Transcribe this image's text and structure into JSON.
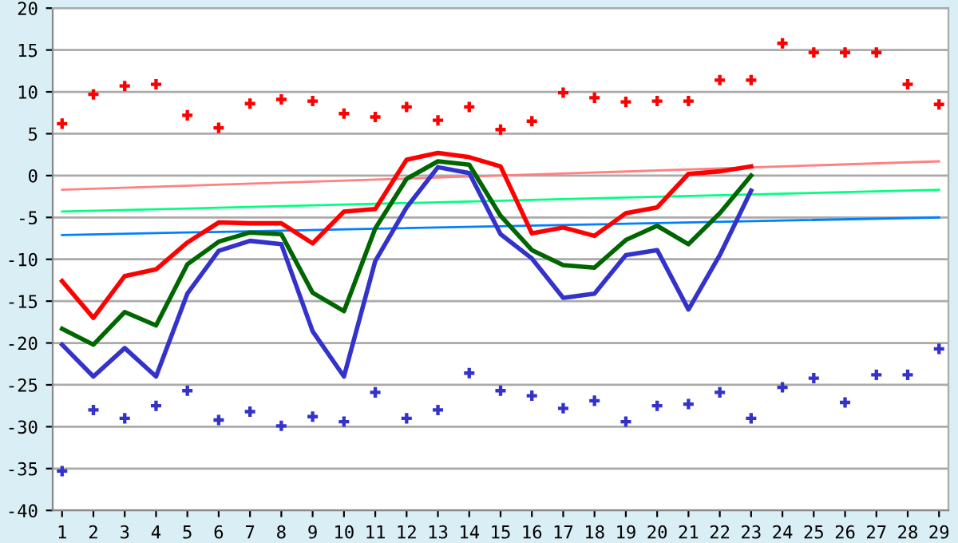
{
  "chart_data": {
    "type": "line",
    "categories": [
      "1",
      "2",
      "3",
      "4",
      "5",
      "6",
      "7",
      "8",
      "9",
      "10",
      "11",
      "12",
      "13",
      "14",
      "15",
      "16",
      "17",
      "18",
      "19",
      "20",
      "21",
      "22",
      "23",
      "24",
      "25",
      "26",
      "27",
      "28",
      "29"
    ],
    "ylim": [
      -40,
      20
    ],
    "yticks": [
      -40,
      -35,
      -30,
      -25,
      -20,
      -15,
      -10,
      -5,
      0,
      5,
      10,
      15,
      20
    ],
    "grid": "y",
    "line_style": "solid",
    "series": [
      {
        "color": "#ff8080",
        "x": [
          "1",
          "29"
        ],
        "values": [
          -1.7,
          1.7
        ]
      },
      {
        "color": "#00ff80",
        "x": [
          "1",
          "29"
        ],
        "values": [
          -4.3,
          -1.7
        ]
      },
      {
        "color": "#0080ff",
        "x": [
          "1",
          "29"
        ],
        "values": [
          -7.1,
          -5.0
        ]
      },
      {
        "color": "#ff0000",
        "values": [
          -12.6,
          -17.0,
          -12.0,
          -11.2,
          -8.0,
          -5.6,
          -5.7,
          -5.7,
          -8.1,
          -4.3,
          -4.0,
          1.9,
          2.7,
          2.2,
          1.1,
          -6.9,
          -6.2,
          -7.2,
          -4.5,
          -3.8,
          0.2,
          0.5,
          1.1,
          null,
          null,
          null,
          null,
          null,
          null
        ]
      },
      {
        "color": "#006600",
        "values": [
          -18.3,
          -20.2,
          -16.3,
          -17.9,
          -10.6,
          -7.9,
          -6.8,
          -7.0,
          -14.0,
          -16.2,
          -6.3,
          -0.4,
          1.7,
          1.3,
          -4.8,
          -8.9,
          -10.7,
          -11.0,
          -7.7,
          -6.0,
          -8.2,
          -4.5,
          0.0,
          null,
          null,
          null,
          null,
          null,
          null
        ]
      },
      {
        "color": "#3333cc",
        "values": [
          -20.2,
          -24.0,
          -20.6,
          -24.0,
          -14.1,
          -9.0,
          -7.8,
          -8.2,
          -18.6,
          -24.0,
          -10.2,
          -3.8,
          1.0,
          0.3,
          -7.0,
          -9.9,
          -14.6,
          -14.1,
          -9.5,
          -8.9,
          -16.0,
          -9.5,
          -1.8,
          null,
          null,
          null,
          null,
          null,
          null
        ]
      },
      {
        "type": "scatter",
        "marker": "cross",
        "color": "#ff0000",
        "values": [
          6.2,
          9.7,
          10.7,
          10.9,
          7.2,
          5.7,
          8.6,
          9.1,
          8.9,
          7.4,
          7.0,
          8.2,
          6.6,
          8.2,
          5.5,
          6.5,
          9.9,
          9.3,
          8.8,
          8.9,
          8.9,
          11.4,
          11.4,
          15.8,
          14.7,
          14.7,
          14.7,
          10.9,
          8.5
        ]
      },
      {
        "type": "scatter",
        "marker": "cross",
        "color": "#3333cc",
        "values": [
          -35.3,
          -28.0,
          -29.0,
          -27.5,
          -25.7,
          -29.2,
          -28.2,
          -29.9,
          -28.8,
          -29.4,
          -25.9,
          -29.0,
          -28.0,
          -23.6,
          -25.7,
          -26.3,
          -27.8,
          -26.9,
          -29.4,
          -27.5,
          -27.3,
          -25.9,
          -29.0,
          -25.3,
          -24.2,
          -27.1,
          -23.8,
          -23.8,
          -20.7
        ]
      }
    ]
  }
}
